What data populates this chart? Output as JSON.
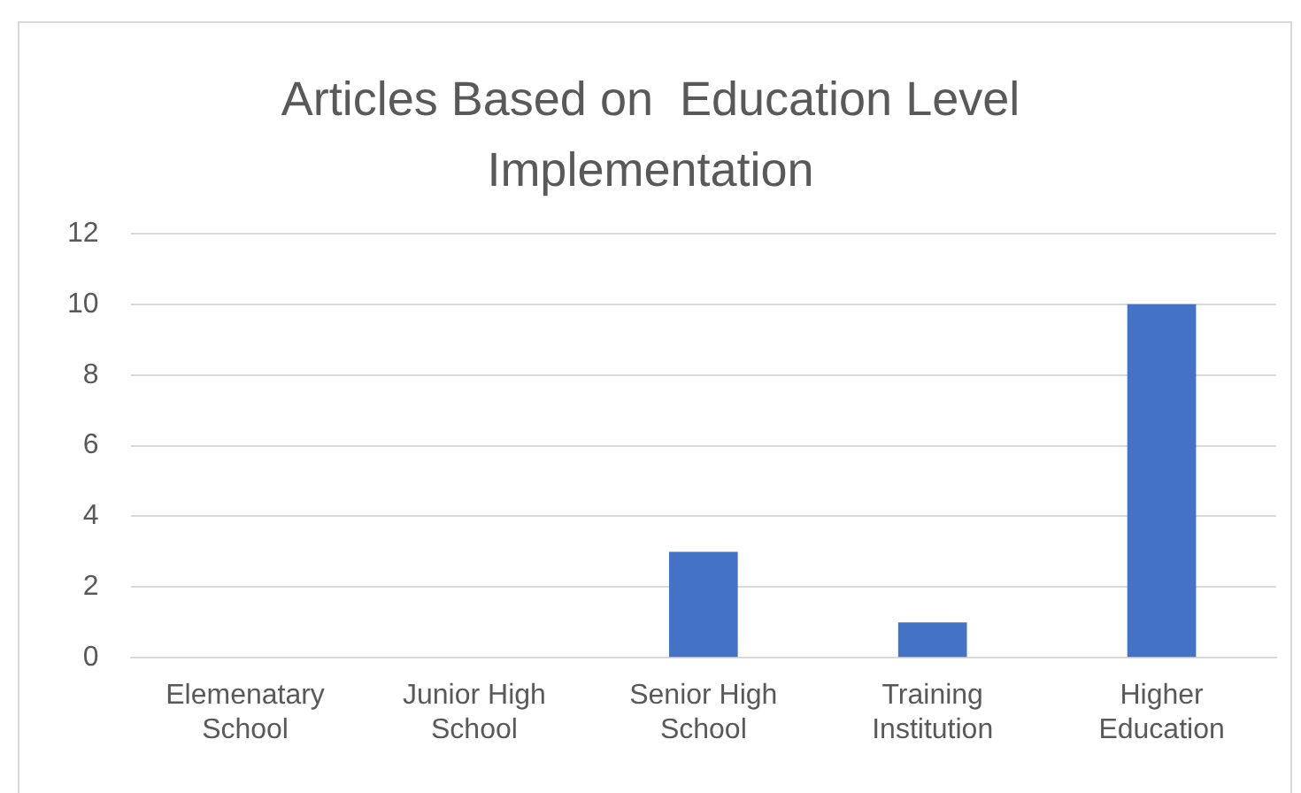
{
  "chart_data": {
    "type": "bar",
    "title": "Articles Based on  Education Level Implementation",
    "categories": [
      "Elemenatary School",
      "Junior High School",
      "Senior High School",
      "Training Institution",
      "Higher Education"
    ],
    "values": [
      0,
      0,
      3,
      1,
      10
    ],
    "color": "#4472c4",
    "ylim": [
      0,
      12
    ],
    "yticks": [
      0,
      2,
      4,
      6,
      8,
      10,
      12
    ],
    "grid": "y",
    "legend": false
  }
}
